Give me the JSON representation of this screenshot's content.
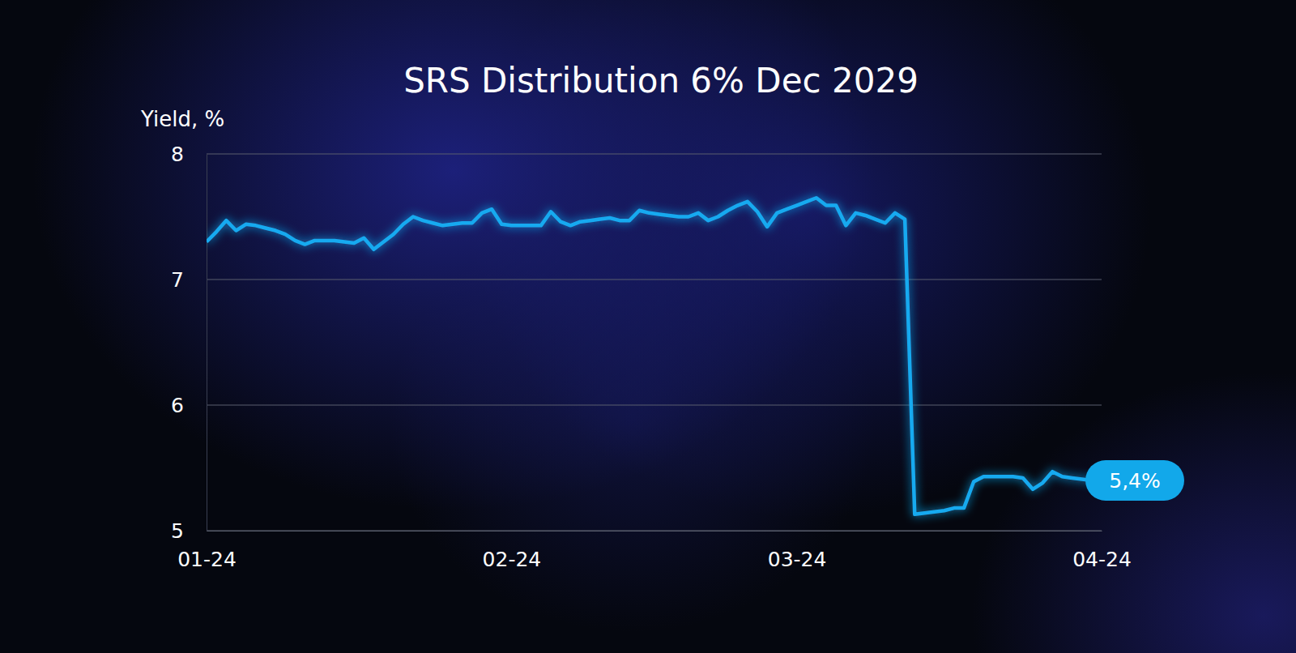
{
  "chart_data": {
    "type": "line",
    "title": "SRS Distribution 6% Dec 2029",
    "ylabel": "Yield, %",
    "categories": [
      "01-24",
      null,
      null,
      null,
      null,
      null,
      null,
      null,
      null,
      null,
      null,
      null,
      null,
      null,
      null,
      null,
      null,
      null,
      null,
      null,
      null,
      null,
      null,
      null,
      null,
      null,
      null,
      null,
      null,
      null,
      null,
      "02-24",
      null,
      null,
      null,
      null,
      null,
      null,
      null,
      null,
      null,
      null,
      null,
      null,
      null,
      null,
      null,
      null,
      null,
      null,
      null,
      null,
      null,
      null,
      null,
      null,
      null,
      null,
      null,
      null,
      "03-24",
      null,
      null,
      null,
      null,
      null,
      null,
      null,
      null,
      null,
      null,
      null,
      null,
      null,
      null,
      null,
      null,
      null,
      null,
      null,
      null,
      null,
      null,
      null,
      null,
      null,
      null,
      null,
      null,
      null,
      null,
      "04-24"
    ],
    "values": [
      7.3,
      7.38,
      7.47,
      7.39,
      7.44,
      7.43,
      7.41,
      7.39,
      7.36,
      7.31,
      7.28,
      7.31,
      7.31,
      7.31,
      7.3,
      7.29,
      7.33,
      7.24,
      7.3,
      7.36,
      7.44,
      7.5,
      7.47,
      7.45,
      7.43,
      7.44,
      7.45,
      7.45,
      7.53,
      7.56,
      7.44,
      7.43,
      7.43,
      7.43,
      7.43,
      7.54,
      7.46,
      7.43,
      7.46,
      7.47,
      7.48,
      7.49,
      7.47,
      7.47,
      7.55,
      7.53,
      7.52,
      7.51,
      7.5,
      7.5,
      7.53,
      7.47,
      7.5,
      7.55,
      7.59,
      7.62,
      7.54,
      7.42,
      7.53,
      7.56,
      7.59,
      7.62,
      7.65,
      7.59,
      7.59,
      7.43,
      7.53,
      7.51,
      7.48,
      7.45,
      7.53,
      7.48,
      5.13,
      5.14,
      5.15,
      5.16,
      5.18,
      5.18,
      5.39,
      5.43,
      5.43,
      5.43,
      5.43,
      5.42,
      5.33,
      5.38,
      5.47,
      5.43,
      5.42,
      5.41,
      5.4,
      5.4
    ],
    "value_labels": [
      null,
      null,
      null,
      null,
      null,
      null,
      null,
      null,
      null,
      null,
      null,
      null,
      null,
      null,
      null,
      null,
      null,
      null,
      null,
      null,
      null,
      null,
      null,
      null,
      null,
      null,
      null,
      null,
      null,
      null,
      null,
      null,
      null,
      null,
      null,
      null,
      null,
      null,
      null,
      null,
      null,
      null,
      null,
      null,
      null,
      null,
      null,
      null,
      null,
      null,
      null,
      null,
      null,
      null,
      null,
      null,
      null,
      null,
      null,
      null,
      null,
      null,
      null,
      null,
      null,
      null,
      null,
      null,
      null,
      null,
      null,
      null,
      null,
      null,
      null,
      null,
      null,
      null,
      null,
      null,
      null,
      null,
      null,
      null,
      null,
      null,
      null,
      null,
      null,
      null,
      null,
      "5,4%"
    ],
    "data_labels": true,
    "color": "#19aaf0",
    "ylim": [
      5,
      8
    ],
    "yticks": [
      5,
      6,
      7,
      8
    ],
    "grid": true
  }
}
